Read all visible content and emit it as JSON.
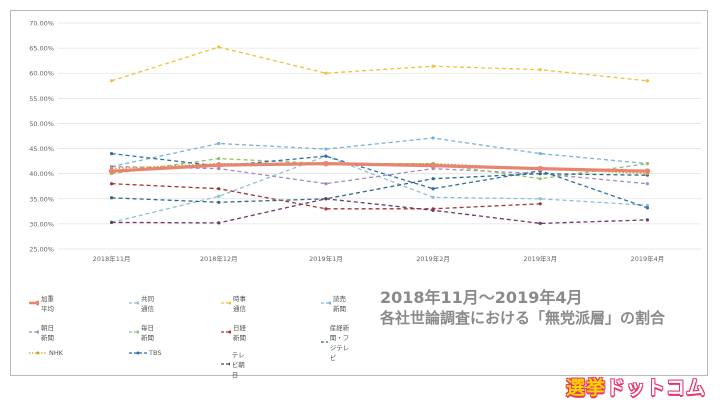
{
  "chart_data": {
    "type": "line",
    "categories": [
      "2018年11月",
      "2018年12月",
      "2019年1月",
      "2019年2月",
      "2019年3月",
      "2019年4月"
    ],
    "ylim": [
      0.25,
      0.7
    ],
    "yticks": [
      "25.00%",
      "30.00%",
      "35.00%",
      "40.00%",
      "45.00%",
      "50.00%",
      "55.00%",
      "60.00%",
      "65.00%",
      "70.00%"
    ],
    "ytick_values": [
      0.25,
      0.3,
      0.35,
      0.4,
      0.45,
      0.5,
      0.55,
      0.6,
      0.65,
      0.7
    ],
    "grid": true,
    "legend_position": "bottom",
    "series": [
      {
        "name": "加重平均",
        "color": "#e8846f",
        "style": "solid",
        "values": [
          0.405,
          0.417,
          0.42,
          0.416,
          0.41,
          0.405
        ]
      },
      {
        "name": "共同通信",
        "color": "#8fc0cf",
        "style": "dashed",
        "values": [
          0.303,
          0.355,
          0.435,
          0.353,
          0.35,
          0.337
        ]
      },
      {
        "name": "時事通信",
        "color": "#f0c23a",
        "style": "dashed",
        "values": [
          0.585,
          0.652,
          0.6,
          0.614,
          0.607,
          0.585
        ]
      },
      {
        "name": "読売新聞",
        "color": "#7ab3d9",
        "style": "dashed",
        "values": [
          0.414,
          0.46,
          0.449,
          0.471,
          0.44,
          0.42
        ]
      },
      {
        "name": "朝日新聞",
        "color": "#a58bc4",
        "style": "dashed",
        "values": [
          0.414,
          0.41,
          0.38,
          0.41,
          0.4,
          0.38
        ]
      },
      {
        "name": "毎日新聞",
        "color": "#93c26c",
        "style": "dashed",
        "values": [
          0.4,
          0.43,
          0.42,
          0.42,
          0.39,
          0.42
        ]
      },
      {
        "name": "日経新聞",
        "color": "#a83232",
        "style": "dashed",
        "values": [
          0.38,
          0.37,
          0.33,
          0.33,
          0.34,
          null
        ]
      },
      {
        "name": "産経新聞・フジテレビ",
        "color": "#2d6a82",
        "style": "dashed",
        "values": [
          0.352,
          0.343,
          0.35,
          0.39,
          0.4,
          0.397
        ]
      },
      {
        "name": "NHK",
        "color": "#c9a227",
        "style": "dotted",
        "values": [
          0.41,
          0.42,
          0.42,
          0.42,
          0.41,
          0.4
        ]
      },
      {
        "name": "TBS",
        "color": "#2f6ea7",
        "style": "dashed",
        "values": [
          0.44,
          0.415,
          0.435,
          0.37,
          0.406,
          0.332
        ]
      },
      {
        "name": "テレビ朝日",
        "color": "#6b3a67",
        "style": "dashed",
        "values": [
          0.303,
          0.302,
          0.35,
          0.327,
          0.301,
          0.308
        ]
      }
    ]
  },
  "caption": {
    "line1": "2018年11月～2019年4月",
    "line2": "各社世論調査における「無党派層」の割合"
  },
  "logo": {
    "part1": "選挙",
    "part2": "ドットコム"
  }
}
